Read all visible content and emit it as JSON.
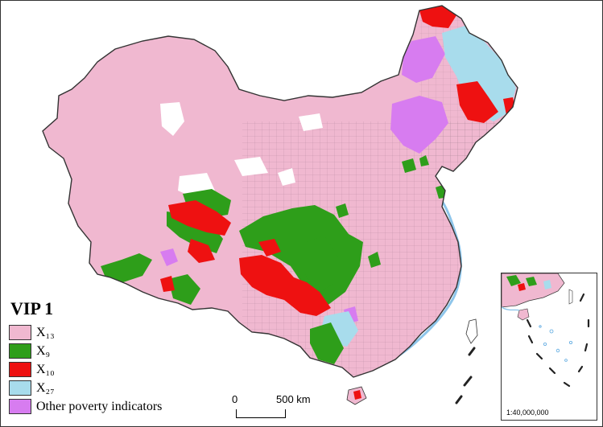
{
  "legend": {
    "title": "VIP 1",
    "items": [
      {
        "label": "X₁₃",
        "color": "#f0b8d0",
        "icon": "pink-swatch"
      },
      {
        "label": "X₉",
        "color": "#2e9e1a",
        "icon": "green-swatch"
      },
      {
        "label": "X₁₀",
        "color": "#ee1111",
        "icon": "red-swatch"
      },
      {
        "label": "X₂₇",
        "color": "#a8dcec",
        "icon": "light-blue-swatch"
      },
      {
        "label": "Other poverty indicators",
        "color": "#d77cf0",
        "icon": "violet-swatch"
      }
    ]
  },
  "scale_bar": {
    "start": "0",
    "end": "500 km"
  },
  "inset": {
    "scale": "1:40,000,000"
  }
}
